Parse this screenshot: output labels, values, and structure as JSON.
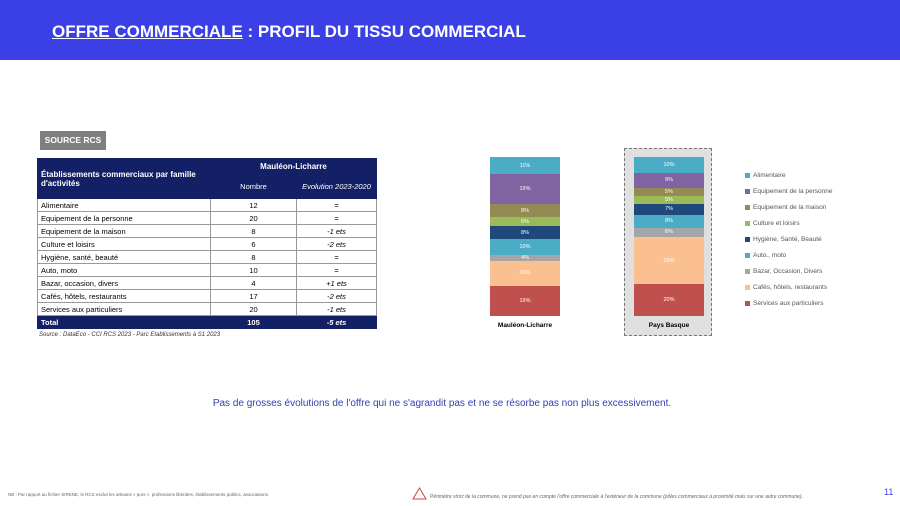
{
  "header": {
    "title_underlined": "OFFRE COMMERCIALE",
    "title_rest": " : PROFIL DU TISSU COMMERCIAL",
    "color": "#3b3fe6"
  },
  "source_badge": "SOURCE RCS",
  "table": {
    "row_header": "Établissements commerciaux par famille d'activités",
    "group_header": "Mauléon-Licharre",
    "col1": "Nombre",
    "col2": "Evolution 2023-2020",
    "rows": [
      {
        "label": "Alimentaire",
        "n": "12",
        "evo": "="
      },
      {
        "label": "Equipement de la personne",
        "n": "20",
        "evo": "="
      },
      {
        "label": "Equipement de la maison",
        "n": "8",
        "evo": "-1 ets"
      },
      {
        "label": "Culture et loisirs",
        "n": "6",
        "evo": "-2 ets"
      },
      {
        "label": "Hygiène, santé, beauté",
        "n": "8",
        "evo": "="
      },
      {
        "label": "Auto, moto",
        "n": "10",
        "evo": "="
      },
      {
        "label": "Bazar, occasion, divers",
        "n": "4",
        "evo": "+1 ets"
      },
      {
        "label": "Cafés, hôtels, restaurants",
        "n": "17",
        "evo": "-2 ets"
      },
      {
        "label": "Services aux particuliers",
        "n": "20",
        "evo": "-1 ets"
      }
    ],
    "total": {
      "label": "Total",
      "n": "105",
      "evo": "-5 ets"
    },
    "source": "Source : DataEco - CCI RCS 2023 - Parc Etablissements à S1 2023"
  },
  "chart_data": {
    "type": "bar",
    "stacked": true,
    "percent": true,
    "categories": [
      "Mauléon-Licharre",
      "Pays Basque"
    ],
    "legend_position": "right",
    "series": [
      {
        "name": "Alimentaire",
        "color": "#4bacc6",
        "values": [
          11,
          10
        ]
      },
      {
        "name": "Equipement de la personne",
        "color": "#8064a2",
        "values": [
          19,
          9
        ]
      },
      {
        "name": "Equipement de la maison",
        "color": "#948a54",
        "values": [
          8,
          5
        ]
      },
      {
        "name": "Culture et loisirs",
        "color": "#9bbb59",
        "values": [
          6,
          5
        ]
      },
      {
        "name": "Hygiène, Santé, Beauté",
        "color": "#1f497d",
        "values": [
          8,
          7
        ]
      },
      {
        "name": "Auto., moto",
        "color": "#4bacc6",
        "values": [
          10,
          8
        ]
      },
      {
        "name": "Bazar, Occasion, Divers",
        "color": "#a5a5a5",
        "values": [
          4,
          6
        ]
      },
      {
        "name": "Cafés, hôtels, restaurants",
        "color": "#fac090",
        "values": [
          16,
          29
        ]
      },
      {
        "name": "Services aux particuliers",
        "color": "#c0504d",
        "values": [
          19,
          20
        ]
      }
    ]
  },
  "message": "Pas de grosses évolutions de l'offre qui ne s'agrandit pas et ne se résorbe pas non plus excessivement.",
  "footnote": "NB : Par rapport au fichier SIRENE, le RCS exclut les artisans « purs », professions libérales, établissements publics, associations.",
  "warning": "Périmètre strict de la commune, ne prend pas en compte l'offre commerciale à l'extérieur de la commune (pôles commerciaux à proximité mais sur une autre commune).",
  "page_number": "11"
}
